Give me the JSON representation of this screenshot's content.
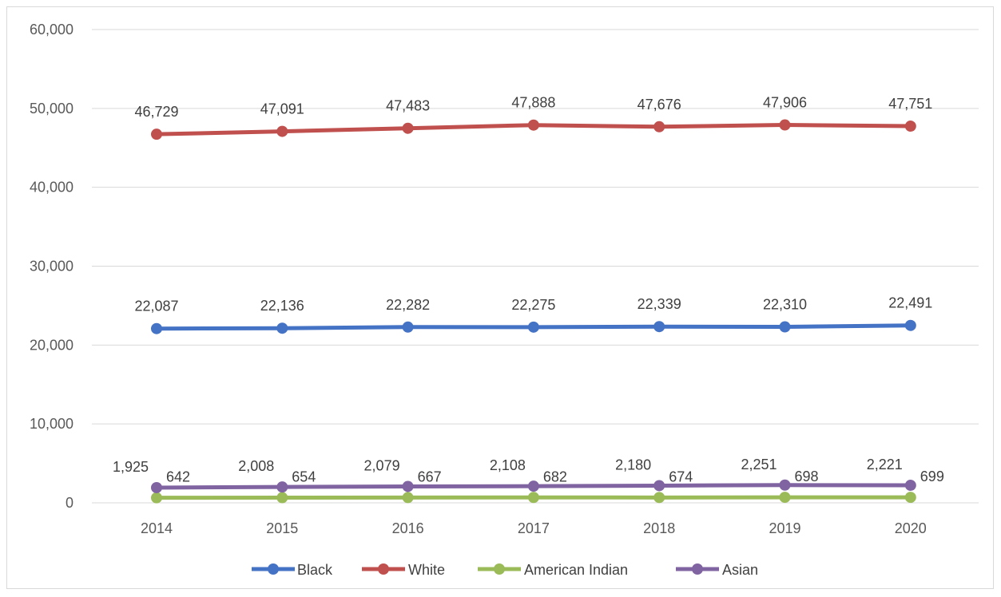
{
  "chart_data": {
    "type": "line",
    "categories": [
      "2014",
      "2015",
      "2016",
      "2017",
      "2018",
      "2019",
      "2020"
    ],
    "ylim": [
      0,
      60000
    ],
    "yticks": [
      0,
      10000,
      20000,
      30000,
      40000,
      50000,
      60000
    ],
    "ytick_labels": [
      "0",
      "10,000",
      "20,000",
      "30,000",
      "40,000",
      "50,000",
      "60,000"
    ],
    "grid": true,
    "legend_position": "bottom",
    "series": [
      {
        "name": "Black",
        "color": "#4472c4",
        "values": [
          22087,
          22136,
          22282,
          22275,
          22339,
          22310,
          22491
        ],
        "labels": [
          "22,087",
          "22,136",
          "22,282",
          "22,275",
          "22,339",
          "22,310",
          "22,491"
        ]
      },
      {
        "name": "White",
        "color": "#c0504d",
        "values": [
          46729,
          47091,
          47483,
          47888,
          47676,
          47906,
          47751
        ],
        "labels": [
          "46,729",
          "47,091",
          "47,483",
          "47,888",
          "47,676",
          "47,906",
          "47,751"
        ]
      },
      {
        "name": "American Indian",
        "color": "#9bbb59",
        "values": [
          642,
          654,
          667,
          682,
          674,
          698,
          699
        ],
        "labels": [
          "642",
          "654",
          "667",
          "682",
          "674",
          "698",
          "699"
        ]
      },
      {
        "name": "Asian",
        "color": "#8064a2",
        "values": [
          1925,
          2008,
          2079,
          2108,
          2180,
          2251,
          2221
        ],
        "labels": [
          "1,925",
          "2,008",
          "2,079",
          "2,108",
          "2,180",
          "2,251",
          "2,221"
        ]
      }
    ]
  }
}
